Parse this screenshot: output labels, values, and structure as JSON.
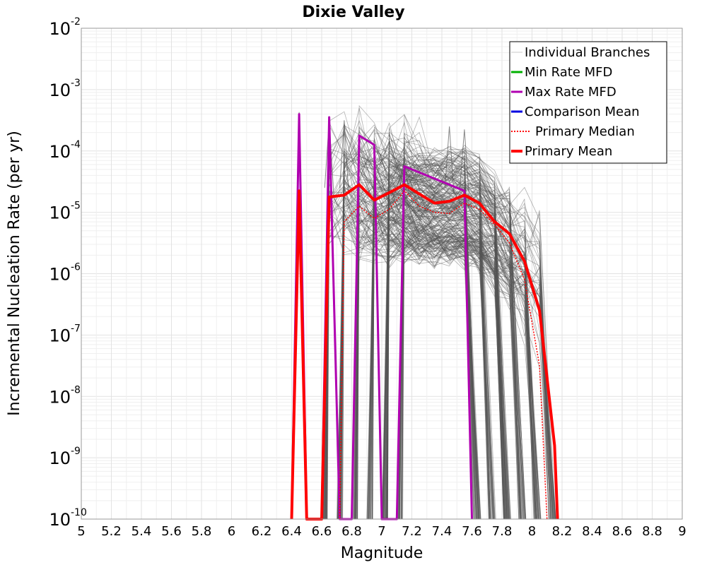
{
  "chart_data": {
    "type": "line",
    "title": "Dixie Valley",
    "xlabel": "Magnitude",
    "ylabel": "Incremental Nucleation Rate (per yr)",
    "xlim": [
      5,
      9
    ],
    "ylim_log10": [
      -10,
      -2
    ],
    "yscale": "log",
    "grid": true,
    "legend_position": "top-right",
    "x_ticks": [
      "5",
      "5.2",
      "5.4",
      "5.6",
      "5.8",
      "6",
      "6.2",
      "6.4",
      "6.6",
      "6.8",
      "7",
      "7.2",
      "7.4",
      "7.6",
      "7.8",
      "8",
      "8.2",
      "8.4",
      "8.6",
      "8.8",
      "9"
    ],
    "y_ticks": [
      {
        "base": "10",
        "exp": "-2",
        "log": -2
      },
      {
        "base": "10",
        "exp": "-3",
        "log": -3
      },
      {
        "base": "10",
        "exp": "-4",
        "log": -4
      },
      {
        "base": "10",
        "exp": "-5",
        "log": -5
      },
      {
        "base": "10",
        "exp": "-6",
        "log": -6
      },
      {
        "base": "10",
        "exp": "-7",
        "log": -7
      },
      {
        "base": "10",
        "exp": "-8",
        "log": -8
      },
      {
        "base": "10",
        "exp": "-9",
        "log": -9
      },
      {
        "base": "10",
        "exp": "-10",
        "log": -10
      }
    ],
    "legend": [
      {
        "label": "Individual Branches",
        "color": "#c8c8c8",
        "dash": "",
        "width": 1
      },
      {
        "label": "Min Rate MFD",
        "color": "#00b000",
        "dash": "",
        "width": 3
      },
      {
        "label": "Max Rate MFD",
        "color": "#b000b0",
        "dash": "",
        "width": 3
      },
      {
        "label": "Comparison Mean",
        "color": "#0000e0",
        "dash": "",
        "width": 3
      },
      {
        "label": "Primary Median",
        "color": "#ff0000",
        "dash": "2,2",
        "width": 2
      },
      {
        "label": "Primary Mean",
        "color": "#ff0000",
        "dash": "",
        "width": 4
      }
    ],
    "series": [
      {
        "name": "Primary Mean",
        "color": "#ff0000",
        "width": 4,
        "dash": "",
        "points": [
          [
            6.4,
            -10
          ],
          [
            6.45,
            -4.65
          ],
          [
            6.5,
            -10
          ],
          [
            6.6,
            -10
          ],
          [
            6.65,
            -4.75
          ],
          [
            6.75,
            -4.72
          ],
          [
            6.85,
            -4.55
          ],
          [
            6.95,
            -4.8
          ],
          [
            7.05,
            -4.68
          ],
          [
            7.15,
            -4.55
          ],
          [
            7.25,
            -4.7
          ],
          [
            7.35,
            -4.85
          ],
          [
            7.45,
            -4.82
          ],
          [
            7.55,
            -4.72
          ],
          [
            7.65,
            -4.85
          ],
          [
            7.75,
            -5.15
          ],
          [
            7.85,
            -5.35
          ],
          [
            7.95,
            -5.8
          ],
          [
            8.05,
            -6.6
          ],
          [
            8.15,
            -8.8
          ],
          [
            8.17,
            -10
          ]
        ]
      },
      {
        "name": "Primary Median",
        "color": "#ff0000",
        "width": 1.5,
        "dash": "2,2",
        "points": [
          [
            6.72,
            -10
          ],
          [
            6.75,
            -5.15
          ],
          [
            6.85,
            -4.9
          ],
          [
            6.95,
            -5.1
          ],
          [
            7.05,
            -4.95
          ],
          [
            7.15,
            -4.65
          ],
          [
            7.25,
            -4.9
          ],
          [
            7.35,
            -5.0
          ],
          [
            7.45,
            -5.02
          ],
          [
            7.55,
            -4.85
          ],
          [
            7.65,
            -4.95
          ],
          [
            7.75,
            -5.2
          ],
          [
            7.85,
            -5.5
          ],
          [
            7.95,
            -6.1
          ],
          [
            8.05,
            -7.5
          ],
          [
            8.1,
            -10
          ]
        ]
      },
      {
        "name": "Max Rate MFD",
        "color": "#b000b0",
        "width": 3,
        "dash": "",
        "points": [
          [
            6.4,
            -10
          ],
          [
            6.45,
            -3.4
          ],
          [
            6.5,
            -10
          ],
          [
            6.6,
            -10
          ],
          [
            6.65,
            -3.45
          ],
          [
            6.72,
            -10
          ],
          [
            6.8,
            -10
          ],
          [
            6.85,
            -3.75
          ],
          [
            6.95,
            -3.9
          ],
          [
            7.0,
            -10
          ],
          [
            7.1,
            -10
          ],
          [
            7.15,
            -4.25
          ],
          [
            7.55,
            -4.65
          ],
          [
            7.6,
            -10
          ]
        ]
      }
    ]
  }
}
